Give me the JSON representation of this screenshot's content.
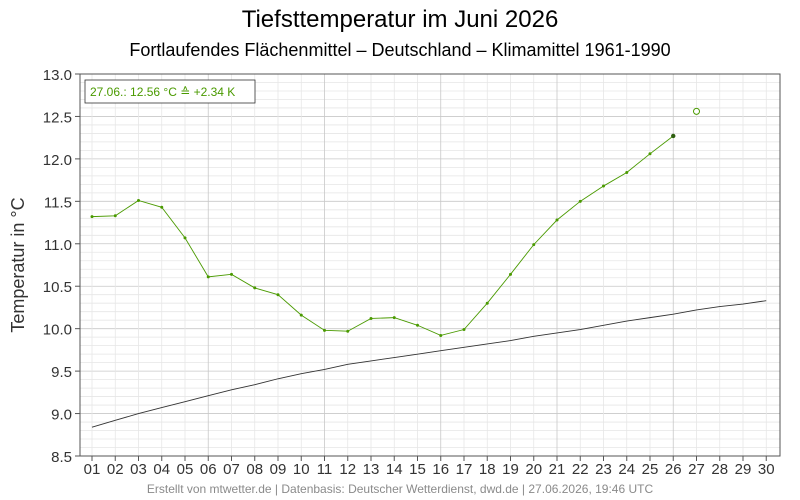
{
  "chart_data": {
    "type": "line",
    "title": "Tiefsttemperatur im Juni 2026",
    "subtitle": "Fortlaufendes Flächenmittel – Deutschland – Klimamittel 1961-1990",
    "ylabel": "Temperatur in °C",
    "xlabel": "",
    "ylim": [
      8.5,
      13.0
    ],
    "yticks": [
      "8.5",
      "9.0",
      "9.5",
      "10.0",
      "10.5",
      "11.0",
      "11.5",
      "12.0",
      "12.5",
      "13.0"
    ],
    "categories": [
      "01",
      "02",
      "03",
      "04",
      "05",
      "06",
      "07",
      "08",
      "09",
      "10",
      "11",
      "12",
      "13",
      "14",
      "15",
      "16",
      "17",
      "18",
      "19",
      "20",
      "21",
      "22",
      "23",
      "24",
      "25",
      "26",
      "27",
      "28",
      "29",
      "30"
    ],
    "grid": true,
    "series": [
      {
        "color": "#4a9a00",
        "values": [
          11.32,
          11.33,
          11.51,
          11.43,
          11.07,
          10.61,
          10.64,
          10.48,
          10.4,
          10.16,
          9.98,
          9.97,
          10.12,
          10.13,
          10.04,
          9.92,
          9.99,
          10.3,
          10.64,
          10.99,
          11.28,
          11.5,
          11.68,
          11.84,
          12.06,
          12.27,
          null,
          null,
          null,
          null
        ]
      },
      {
        "color": "#333333",
        "values": [
          8.84,
          8.92,
          9.0,
          9.07,
          9.14,
          9.21,
          9.28,
          9.34,
          9.41,
          9.47,
          9.52,
          9.58,
          9.62,
          9.66,
          9.7,
          9.74,
          9.78,
          9.82,
          9.86,
          9.91,
          9.95,
          9.99,
          10.04,
          10.09,
          10.13,
          10.17,
          10.22,
          10.26,
          10.29,
          10.33
        ]
      }
    ],
    "current_point": {
      "day": "27",
      "value": 12.56
    },
    "annotation": "27.06.: 12.56 °C ≙ +2.34 K",
    "footer": "Erstellt von mtwetter.de | Datenbasis: Deutscher Wetterdienst, dwd.de | 27.06.2026, 19:46 UTC",
    "colors": {
      "series_green": "#4a9a00",
      "climate_line": "#333333",
      "grid_major": "#c8c8c8",
      "grid_minor": "#e6e6e6"
    }
  }
}
